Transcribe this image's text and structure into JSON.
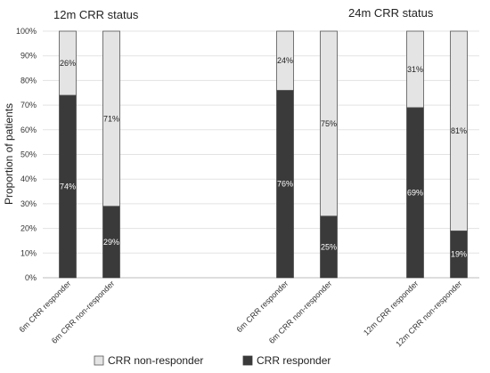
{
  "chart_data": {
    "type": "bar",
    "stacked": true,
    "ylabel": "Proportion of patients",
    "yticks": [
      "0%",
      "10%",
      "20%",
      "30%",
      "40%",
      "50%",
      "60%",
      "70%",
      "80%",
      "90%",
      "100%"
    ],
    "ylim": [
      0,
      100
    ],
    "grid": true,
    "legend_position": "bottom",
    "panels": [
      {
        "title": "12m CRR status"
      },
      {
        "title": "24m CRR status"
      }
    ],
    "series": [
      {
        "name": "CRR responder",
        "color": "#3a3a3a",
        "label_color": "#ffffff"
      },
      {
        "name": "CRR non-responder",
        "color": "#e4e4e4",
        "label_color": "#222222"
      }
    ],
    "bars": [
      {
        "category": "6m CRR responder",
        "responder": 74,
        "non_responder": 26,
        "responder_label": "74%",
        "non_responder_label": "26%"
      },
      {
        "category": "6m CRR non-responder",
        "responder": 29,
        "non_responder": 71,
        "responder_label": "29%",
        "non_responder_label": "71%"
      },
      {
        "category": "6m CRR responder",
        "responder": 76,
        "non_responder": 24,
        "responder_label": "76%",
        "non_responder_label": "24%"
      },
      {
        "category": "6m CRR non-responder",
        "responder": 25,
        "non_responder": 75,
        "responder_label": "25%",
        "non_responder_label": "75%"
      },
      {
        "category": "12m CRR responder",
        "responder": 69,
        "non_responder": 31,
        "responder_label": "69%",
        "non_responder_label": "31%"
      },
      {
        "category": "12m CRR non-responder",
        "responder": 19,
        "non_responder": 81,
        "responder_label": "19%",
        "non_responder_label": "81%"
      }
    ]
  }
}
